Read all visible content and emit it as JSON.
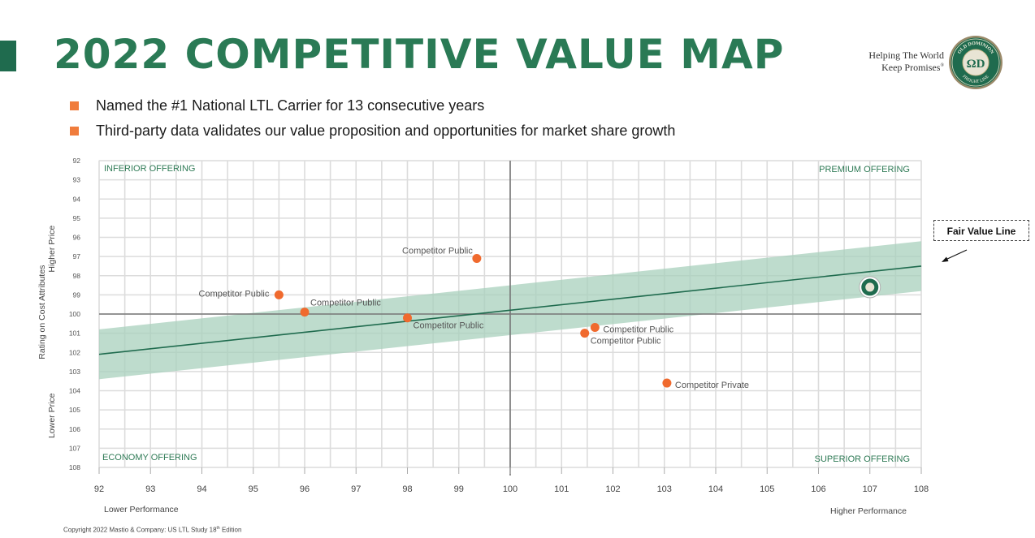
{
  "header": {
    "title": "2022 COMPETITIVE VALUE MAP",
    "tagline_line1": "Helping The World",
    "tagline_line2": "Keep Promises",
    "tagline_mark": "®",
    "logo_text_top": "OLD DOMINION",
    "logo_text_bottom": "FREIGHT LINE",
    "logo_monogram": "ΩD"
  },
  "bullets": [
    "Named the #1 National LTL Carrier for 13 consecutive years",
    "Third-party data validates our value proposition and opportunities for market share growth"
  ],
  "fair_value_label": "Fair Value Line",
  "copyright": "Copyright 2022 Mastio & Company: US LTL Study 18",
  "copyright_sup": "th",
  "copyright_end": " Edition",
  "colors": {
    "title_green": "#2a7a55",
    "band": "#a8d0bc",
    "fair_line": "#1f6b4e",
    "point": "#f06a2e",
    "bullet": "#f07c3c",
    "quadrant_label": "#2e7a55"
  },
  "chart_data": {
    "type": "scatter",
    "x_ticks": [
      92,
      93,
      94,
      95,
      96,
      97,
      98,
      99,
      100,
      101,
      102,
      103,
      104,
      105,
      106,
      107,
      108
    ],
    "y_ticks": [
      92,
      93,
      94,
      95,
      96,
      97,
      98,
      99,
      100,
      101,
      102,
      103,
      104,
      105,
      106,
      107,
      108
    ],
    "xlim": [
      92,
      108
    ],
    "ylim": [
      92,
      108
    ],
    "y_inverted": true,
    "grid": true,
    "ylabel": "Rating on Cost Attributes",
    "y_top_label": "Higher Price",
    "y_bottom_label": "Lower Price",
    "x_left_label": "Lower Performance",
    "x_right_label": "Higher Performance",
    "quadrants": {
      "top_left": "INFERIOR OFFERING",
      "top_right": "PREMIUM OFFERING",
      "bottom_left": "ECONOMY OFFERING",
      "bottom_right": "SUPERIOR OFFERING"
    },
    "fair_value_line": {
      "x": [
        92,
        108
      ],
      "y": [
        102.1,
        97.5
      ],
      "band_half_width": 1.3
    },
    "points": [
      {
        "label": "Competitor Public",
        "x": 99.35,
        "y": 97.1,
        "label_pos": "above"
      },
      {
        "label": "Competitor Public",
        "x": 95.5,
        "y": 99.0,
        "label_pos": "left"
      },
      {
        "label": "Competitor Public",
        "x": 96.0,
        "y": 99.9,
        "label_pos": "above-right"
      },
      {
        "label": "Competitor Public",
        "x": 98.0,
        "y": 100.2,
        "label_pos": "below-right"
      },
      {
        "label": "Competitor Public",
        "x": 101.65,
        "y": 100.7,
        "label_pos": "right"
      },
      {
        "label": "Competitor Public",
        "x": 101.45,
        "y": 101.0,
        "label_pos": "below-right"
      },
      {
        "label": "Competitor Private",
        "x": 103.05,
        "y": 103.6,
        "label_pos": "right"
      }
    ],
    "highlight_point": {
      "x": 107.0,
      "y": 98.6
    }
  }
}
